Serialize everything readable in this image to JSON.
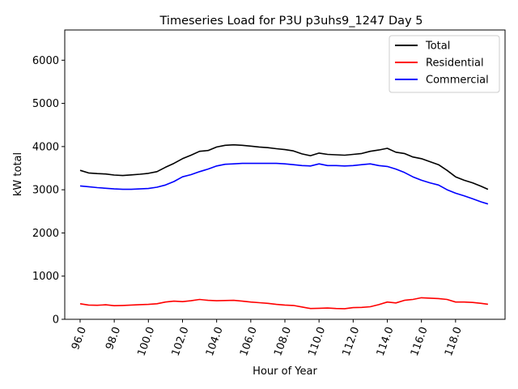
{
  "chart_data": {
    "type": "line",
    "title": "Timeseries Load for P3U p3uhs9_1247  Day 5",
    "xlabel": "Hour of Year",
    "ylabel": "kW total",
    "xlim": [
      95.1,
      120.9
    ],
    "ylim": [
      0,
      6700
    ],
    "x_ticks": [
      96,
      98,
      100,
      102,
      104,
      106,
      108,
      110,
      112,
      114,
      116,
      118
    ],
    "x_tick_labels": [
      "96.0",
      "98.0",
      "100.0",
      "102.0",
      "104.0",
      "106.0",
      "108.0",
      "110.0",
      "112.0",
      "114.0",
      "116.0",
      "118.0"
    ],
    "y_ticks": [
      0,
      1000,
      2000,
      3000,
      4000,
      5000,
      6000
    ],
    "y_tick_labels": [
      "0",
      "1000",
      "2000",
      "3000",
      "4000",
      "5000",
      "6000"
    ],
    "legend_position": "top-right",
    "x": [
      96.0,
      96.5,
      97.0,
      97.5,
      98.0,
      98.5,
      99.0,
      99.5,
      100.0,
      100.5,
      101.0,
      101.5,
      102.0,
      102.5,
      103.0,
      103.5,
      104.0,
      104.5,
      105.0,
      105.5,
      106.0,
      106.5,
      107.0,
      107.5,
      108.0,
      108.5,
      109.0,
      109.5,
      110.0,
      110.5,
      111.0,
      111.5,
      112.0,
      112.5,
      113.0,
      113.5,
      114.0,
      114.5,
      115.0,
      115.5,
      116.0,
      116.5,
      117.0,
      117.5,
      118.0,
      118.5,
      119.0,
      119.5,
      119.9
    ],
    "series": [
      {
        "name": "Total",
        "color": "#000000",
        "values": [
          3450,
          3390,
          3375,
          3365,
          3340,
          3330,
          3345,
          3360,
          3380,
          3420,
          3520,
          3610,
          3720,
          3800,
          3890,
          3910,
          3990,
          4030,
          4040,
          4030,
          4010,
          3990,
          3975,
          3950,
          3930,
          3900,
          3830,
          3790,
          3850,
          3820,
          3810,
          3800,
          3820,
          3840,
          3890,
          3920,
          3960,
          3870,
          3840,
          3760,
          3720,
          3650,
          3580,
          3450,
          3300,
          3220,
          3160,
          3080,
          3010
        ]
      },
      {
        "name": "Residential",
        "color": "#ff0000",
        "values": [
          360,
          330,
          325,
          335,
          315,
          320,
          330,
          340,
          345,
          360,
          400,
          420,
          410,
          430,
          460,
          440,
          430,
          435,
          440,
          420,
          400,
          385,
          370,
          345,
          330,
          320,
          285,
          250,
          255,
          260,
          250,
          245,
          270,
          275,
          290,
          340,
          400,
          380,
          440,
          460,
          500,
          490,
          480,
          460,
          400,
          400,
          390,
          370,
          350
        ]
      },
      {
        "name": "Commercial",
        "color": "#0000ff",
        "values": [
          3090,
          3070,
          3050,
          3035,
          3020,
          3010,
          3010,
          3020,
          3030,
          3060,
          3110,
          3190,
          3300,
          3350,
          3420,
          3480,
          3550,
          3590,
          3600,
          3610,
          3610,
          3610,
          3610,
          3610,
          3600,
          3580,
          3560,
          3550,
          3600,
          3560,
          3560,
          3550,
          3560,
          3580,
          3600,
          3560,
          3540,
          3480,
          3400,
          3300,
          3220,
          3160,
          3110,
          3000,
          2920,
          2860,
          2790,
          2720,
          2670
        ]
      }
    ]
  }
}
